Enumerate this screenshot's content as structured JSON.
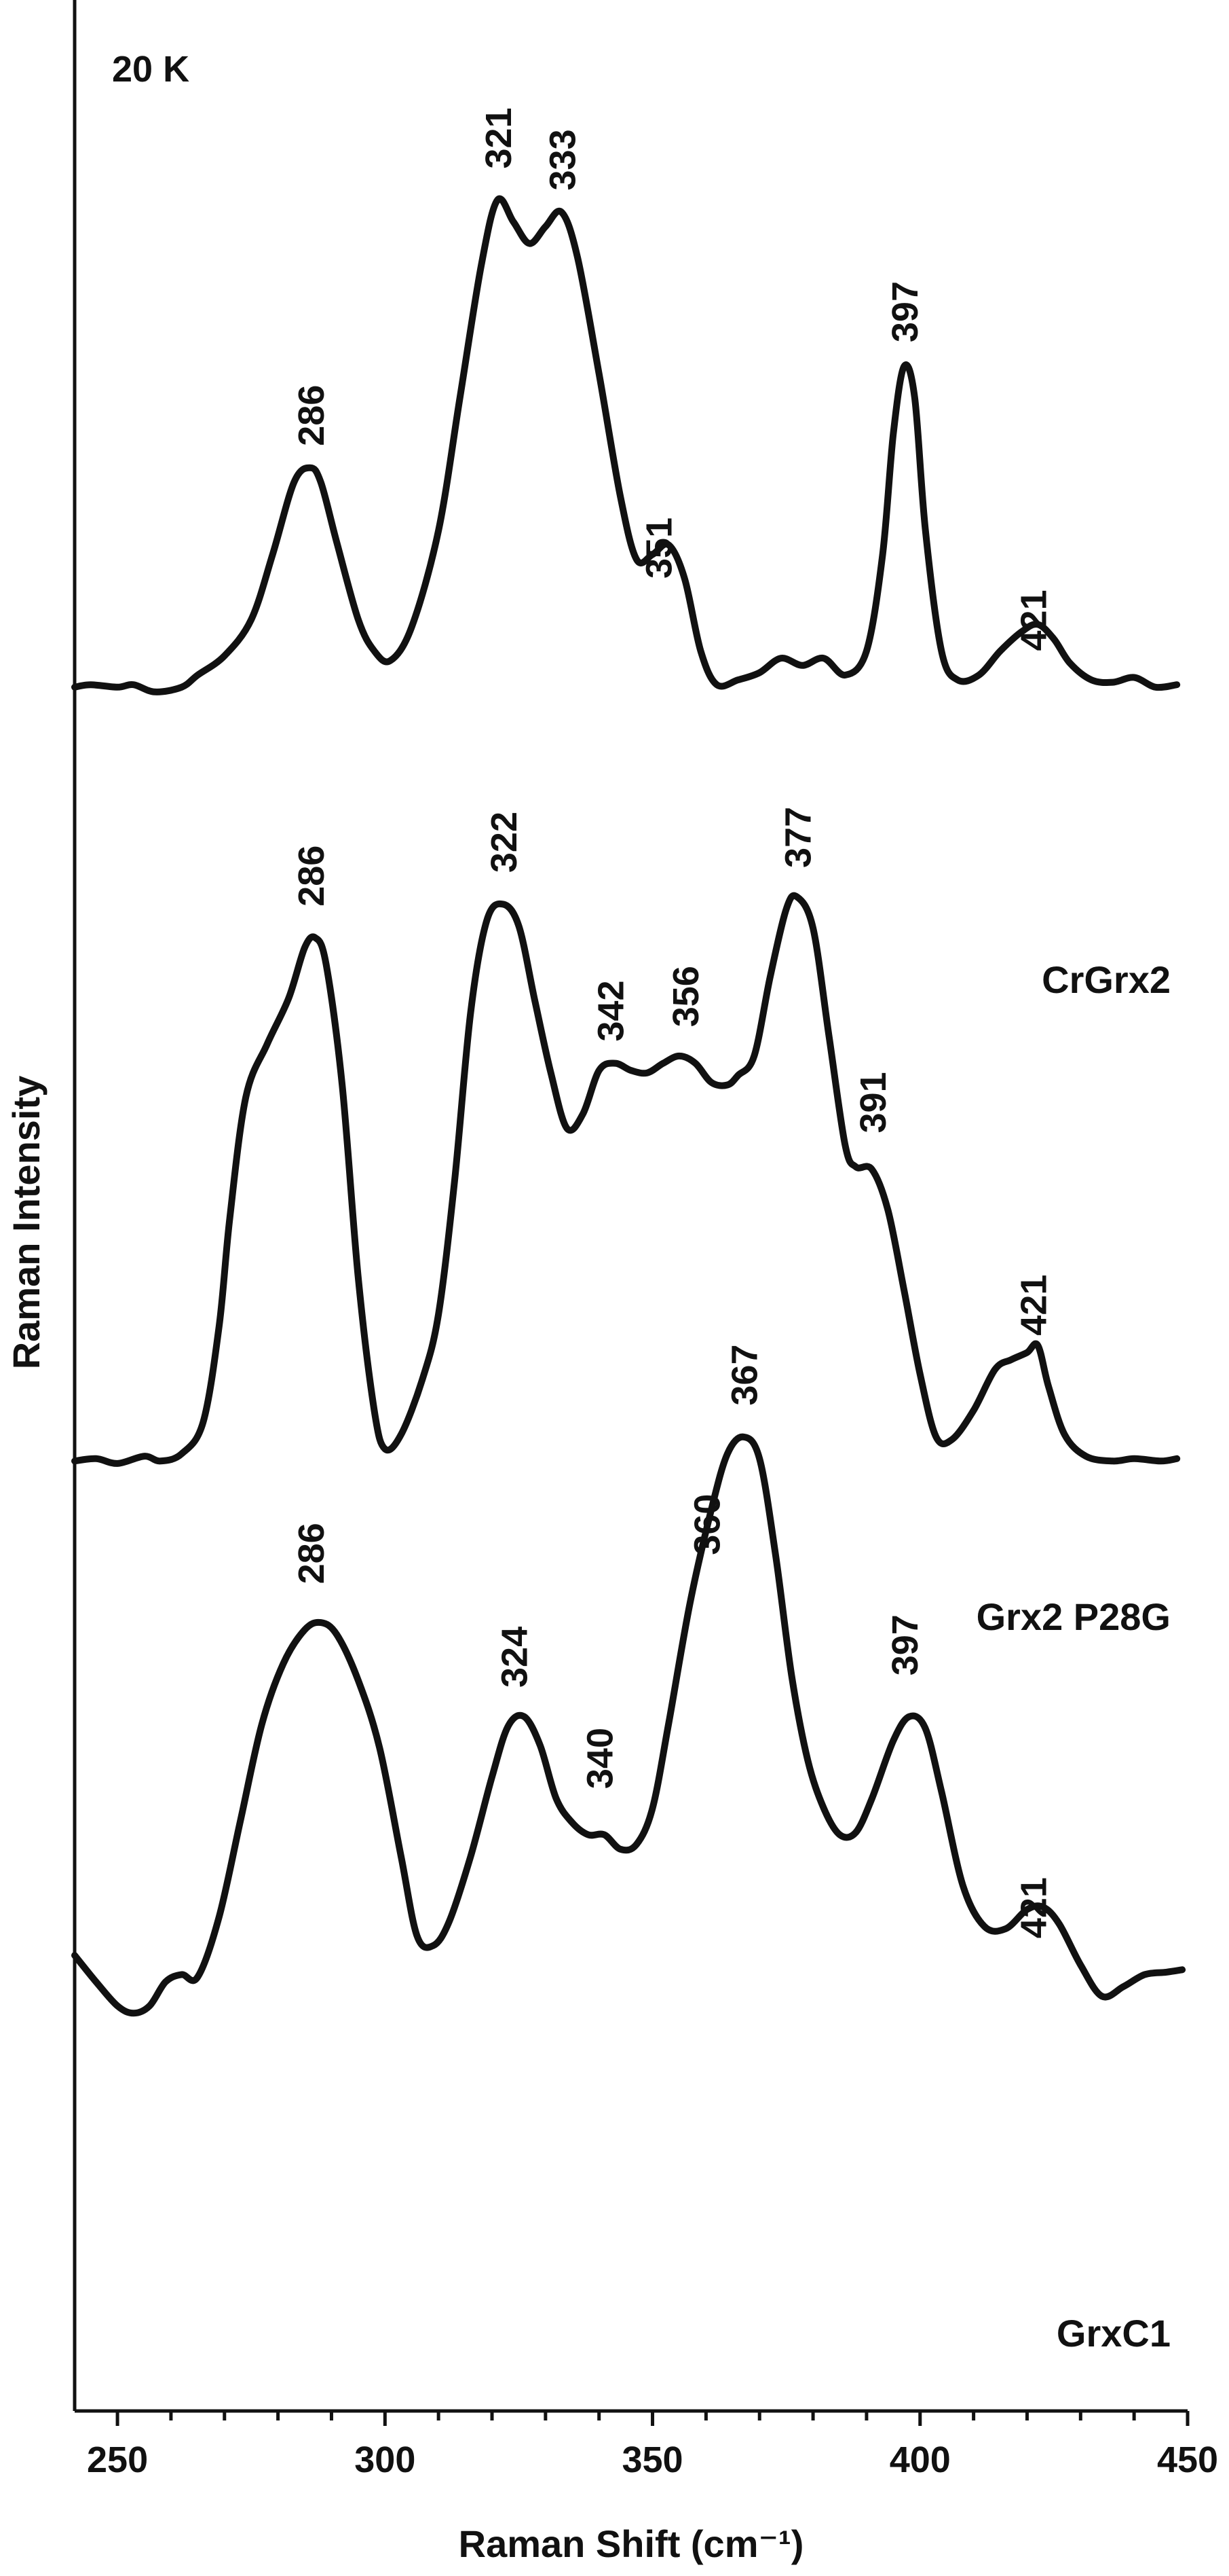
{
  "chart_data": {
    "type": "line",
    "annotation": "20 K",
    "xlabel": "Raman Shift (cm⁻¹)",
    "ylabel": "Raman Intensity",
    "xlim": [
      242,
      450
    ],
    "ylim": [
      0,
      100
    ],
    "x_ticks": [
      "250",
      "300",
      "350",
      "400",
      "450"
    ],
    "x_tick_values": [
      250,
      300,
      350,
      400,
      450
    ],
    "series": [
      {
        "name": "CrGrx2",
        "color": "#111111",
        "peak_labels": [
          {
            "text": "286",
            "x": 286,
            "y": 81.5
          },
          {
            "text": "321",
            "x": 321,
            "y": 93.0
          },
          {
            "text": "333",
            "x": 333,
            "y": 92.1
          },
          {
            "text": "351",
            "x": 351,
            "y": 76.0
          },
          {
            "text": "397",
            "x": 397,
            "y": 85.8
          },
          {
            "text": "421",
            "x": 421,
            "y": 73.0
          }
        ],
        "points": [
          [
            242,
            71.5
          ],
          [
            245,
            71.6
          ],
          [
            250,
            71.5
          ],
          [
            253,
            71.6
          ],
          [
            257,
            71.3
          ],
          [
            262,
            71.5
          ],
          [
            265,
            72.0
          ],
          [
            270,
            72.8
          ],
          [
            275,
            74.3
          ],
          [
            279,
            77.0
          ],
          [
            283,
            80.0
          ],
          [
            286,
            80.6
          ],
          [
            288,
            80.0
          ],
          [
            291,
            77.5
          ],
          [
            295,
            74.3
          ],
          [
            298,
            73.0
          ],
          [
            301,
            72.6
          ],
          [
            305,
            74.0
          ],
          [
            310,
            78.0
          ],
          [
            314,
            83.5
          ],
          [
            318,
            89.0
          ],
          [
            321,
            91.7
          ],
          [
            324,
            90.8
          ],
          [
            327,
            89.9
          ],
          [
            330,
            90.6
          ],
          [
            333,
            91.2
          ],
          [
            336,
            89.3
          ],
          [
            340,
            84.5
          ],
          [
            344,
            79.4
          ],
          [
            347,
            76.8
          ],
          [
            350,
            77.0
          ],
          [
            353,
            77.4
          ],
          [
            356,
            76.0
          ],
          [
            359,
            73.0
          ],
          [
            362,
            71.6
          ],
          [
            366,
            71.8
          ],
          [
            370,
            72.1
          ],
          [
            374,
            72.7
          ],
          [
            378,
            72.4
          ],
          [
            382,
            72.7
          ],
          [
            386,
            72.0
          ],
          [
            390,
            73.0
          ],
          [
            393,
            77.0
          ],
          [
            395,
            82.0
          ],
          [
            397,
            84.8
          ],
          [
            399,
            83.5
          ],
          [
            401,
            78.0
          ],
          [
            404,
            73.0
          ],
          [
            407,
            71.8
          ],
          [
            411,
            72.0
          ],
          [
            415,
            73.0
          ],
          [
            419,
            73.8
          ],
          [
            422,
            74.1
          ],
          [
            425,
            73.5
          ],
          [
            428,
            72.5
          ],
          [
            432,
            71.8
          ],
          [
            436,
            71.7
          ],
          [
            440,
            71.9
          ],
          [
            444,
            71.5
          ],
          [
            448,
            71.6
          ]
        ]
      },
      {
        "name": "Grx2 P28G",
        "color": "#111111",
        "peak_labels": [
          {
            "text": "286",
            "x": 286,
            "y": 62.4
          },
          {
            "text": "322",
            "x": 322,
            "y": 63.8
          },
          {
            "text": "342",
            "x": 342,
            "y": 56.8
          },
          {
            "text": "356",
            "x": 356,
            "y": 57.4
          },
          {
            "text": "377",
            "x": 377,
            "y": 64.0
          },
          {
            "text": "391",
            "x": 391,
            "y": 53.0
          },
          {
            "text": "421",
            "x": 421,
            "y": 44.6
          }
        ],
        "points": [
          [
            242,
            39.4
          ],
          [
            246,
            39.5
          ],
          [
            250,
            39.3
          ],
          [
            255,
            39.6
          ],
          [
            258,
            39.4
          ],
          [
            262,
            39.7
          ],
          [
            266,
            41.0
          ],
          [
            269,
            45.0
          ],
          [
            271,
            49.5
          ],
          [
            274,
            54.5
          ],
          [
            278,
            56.7
          ],
          [
            282,
            58.6
          ],
          [
            285,
            60.7
          ],
          [
            287,
            61.1
          ],
          [
            289,
            60.0
          ],
          [
            292,
            55.0
          ],
          [
            295,
            47.0
          ],
          [
            298,
            41.5
          ],
          [
            300,
            39.9
          ],
          [
            303,
            40.5
          ],
          [
            307,
            42.8
          ],
          [
            310,
            45.5
          ],
          [
            313,
            51.0
          ],
          [
            316,
            58.0
          ],
          [
            319,
            61.8
          ],
          [
            322,
            62.5
          ],
          [
            325,
            61.6
          ],
          [
            328,
            58.5
          ],
          [
            331,
            55.5
          ],
          [
            334,
            53.2
          ],
          [
            337,
            53.8
          ],
          [
            340,
            55.6
          ],
          [
            343,
            55.9
          ],
          [
            346,
            55.6
          ],
          [
            349,
            55.5
          ],
          [
            352,
            55.9
          ],
          [
            355,
            56.2
          ],
          [
            358,
            55.9
          ],
          [
            361,
            55.1
          ],
          [
            364,
            55.0
          ],
          [
            366,
            55.4
          ],
          [
            369,
            56.2
          ],
          [
            372,
            59.5
          ],
          [
            375,
            62.3
          ],
          [
            377,
            62.8
          ],
          [
            380,
            61.5
          ],
          [
            383,
            57.0
          ],
          [
            386,
            52.5
          ],
          [
            388,
            51.6
          ],
          [
            391,
            51.5
          ],
          [
            394,
            49.8
          ],
          [
            397,
            46.5
          ],
          [
            400,
            43.0
          ],
          [
            403,
            40.4
          ],
          [
            406,
            40.3
          ],
          [
            410,
            41.5
          ],
          [
            414,
            43.2
          ],
          [
            417,
            43.6
          ],
          [
            420,
            43.9
          ],
          [
            422,
            44.2
          ],
          [
            424,
            42.5
          ],
          [
            427,
            40.5
          ],
          [
            431,
            39.6
          ],
          [
            436,
            39.4
          ],
          [
            440,
            39.5
          ],
          [
            445,
            39.4
          ],
          [
            448,
            39.5
          ]
        ]
      },
      {
        "name": "GrxC1",
        "color": "#111111",
        "peak_labels": [
          {
            "text": "286",
            "x": 286,
            "y": 34.3
          },
          {
            "text": "324",
            "x": 324,
            "y": 30.0
          },
          {
            "text": "340",
            "x": 340,
            "y": 25.8
          },
          {
            "text": "360",
            "x": 360,
            "y": 35.5
          },
          {
            "text": "367",
            "x": 367,
            "y": 41.7
          },
          {
            "text": "397",
            "x": 397,
            "y": 30.5
          },
          {
            "text": "421",
            "x": 421,
            "y": 19.6
          }
        ],
        "points": [
          [
            242,
            18.9
          ],
          [
            246,
            17.8
          ],
          [
            250,
            16.8
          ],
          [
            253,
            16.5
          ],
          [
            256,
            16.8
          ],
          [
            259,
            17.8
          ],
          [
            262,
            18.1
          ],
          [
            265,
            18.0
          ],
          [
            269,
            20.5
          ],
          [
            273,
            24.5
          ],
          [
            277,
            28.5
          ],
          [
            281,
            31.0
          ],
          [
            285,
            32.4
          ],
          [
            288,
            32.7
          ],
          [
            291,
            32.2
          ],
          [
            295,
            30.3
          ],
          [
            299,
            27.5
          ],
          [
            303,
            23.0
          ],
          [
            306,
            19.7
          ],
          [
            309,
            19.3
          ],
          [
            312,
            20.3
          ],
          [
            316,
            23.0
          ],
          [
            320,
            26.3
          ],
          [
            323,
            28.4
          ],
          [
            326,
            28.8
          ],
          [
            329,
            27.6
          ],
          [
            332,
            25.4
          ],
          [
            335,
            24.4
          ],
          [
            338,
            23.9
          ],
          [
            341,
            23.9
          ],
          [
            344,
            23.3
          ],
          [
            347,
            23.5
          ],
          [
            350,
            25.0
          ],
          [
            353,
            28.5
          ],
          [
            357,
            33.5
          ],
          [
            361,
            37.4
          ],
          [
            364,
            39.7
          ],
          [
            367,
            40.4
          ],
          [
            370,
            39.5
          ],
          [
            373,
            35.5
          ],
          [
            376,
            30.5
          ],
          [
            379,
            27.0
          ],
          [
            382,
            25.0
          ],
          [
            385,
            23.9
          ],
          [
            388,
            24.0
          ],
          [
            391,
            25.4
          ],
          [
            395,
            27.8
          ],
          [
            398,
            28.8
          ],
          [
            401,
            28.3
          ],
          [
            404,
            25.7
          ],
          [
            408,
            21.8
          ],
          [
            412,
            20.1
          ],
          [
            416,
            20.0
          ],
          [
            420,
            20.8
          ],
          [
            423,
            20.9
          ],
          [
            426,
            20.2
          ],
          [
            430,
            18.5
          ],
          [
            434,
            17.2
          ],
          [
            438,
            17.6
          ],
          [
            442,
            18.1
          ],
          [
            446,
            18.2
          ],
          [
            449,
            18.3
          ]
        ]
      }
    ]
  }
}
